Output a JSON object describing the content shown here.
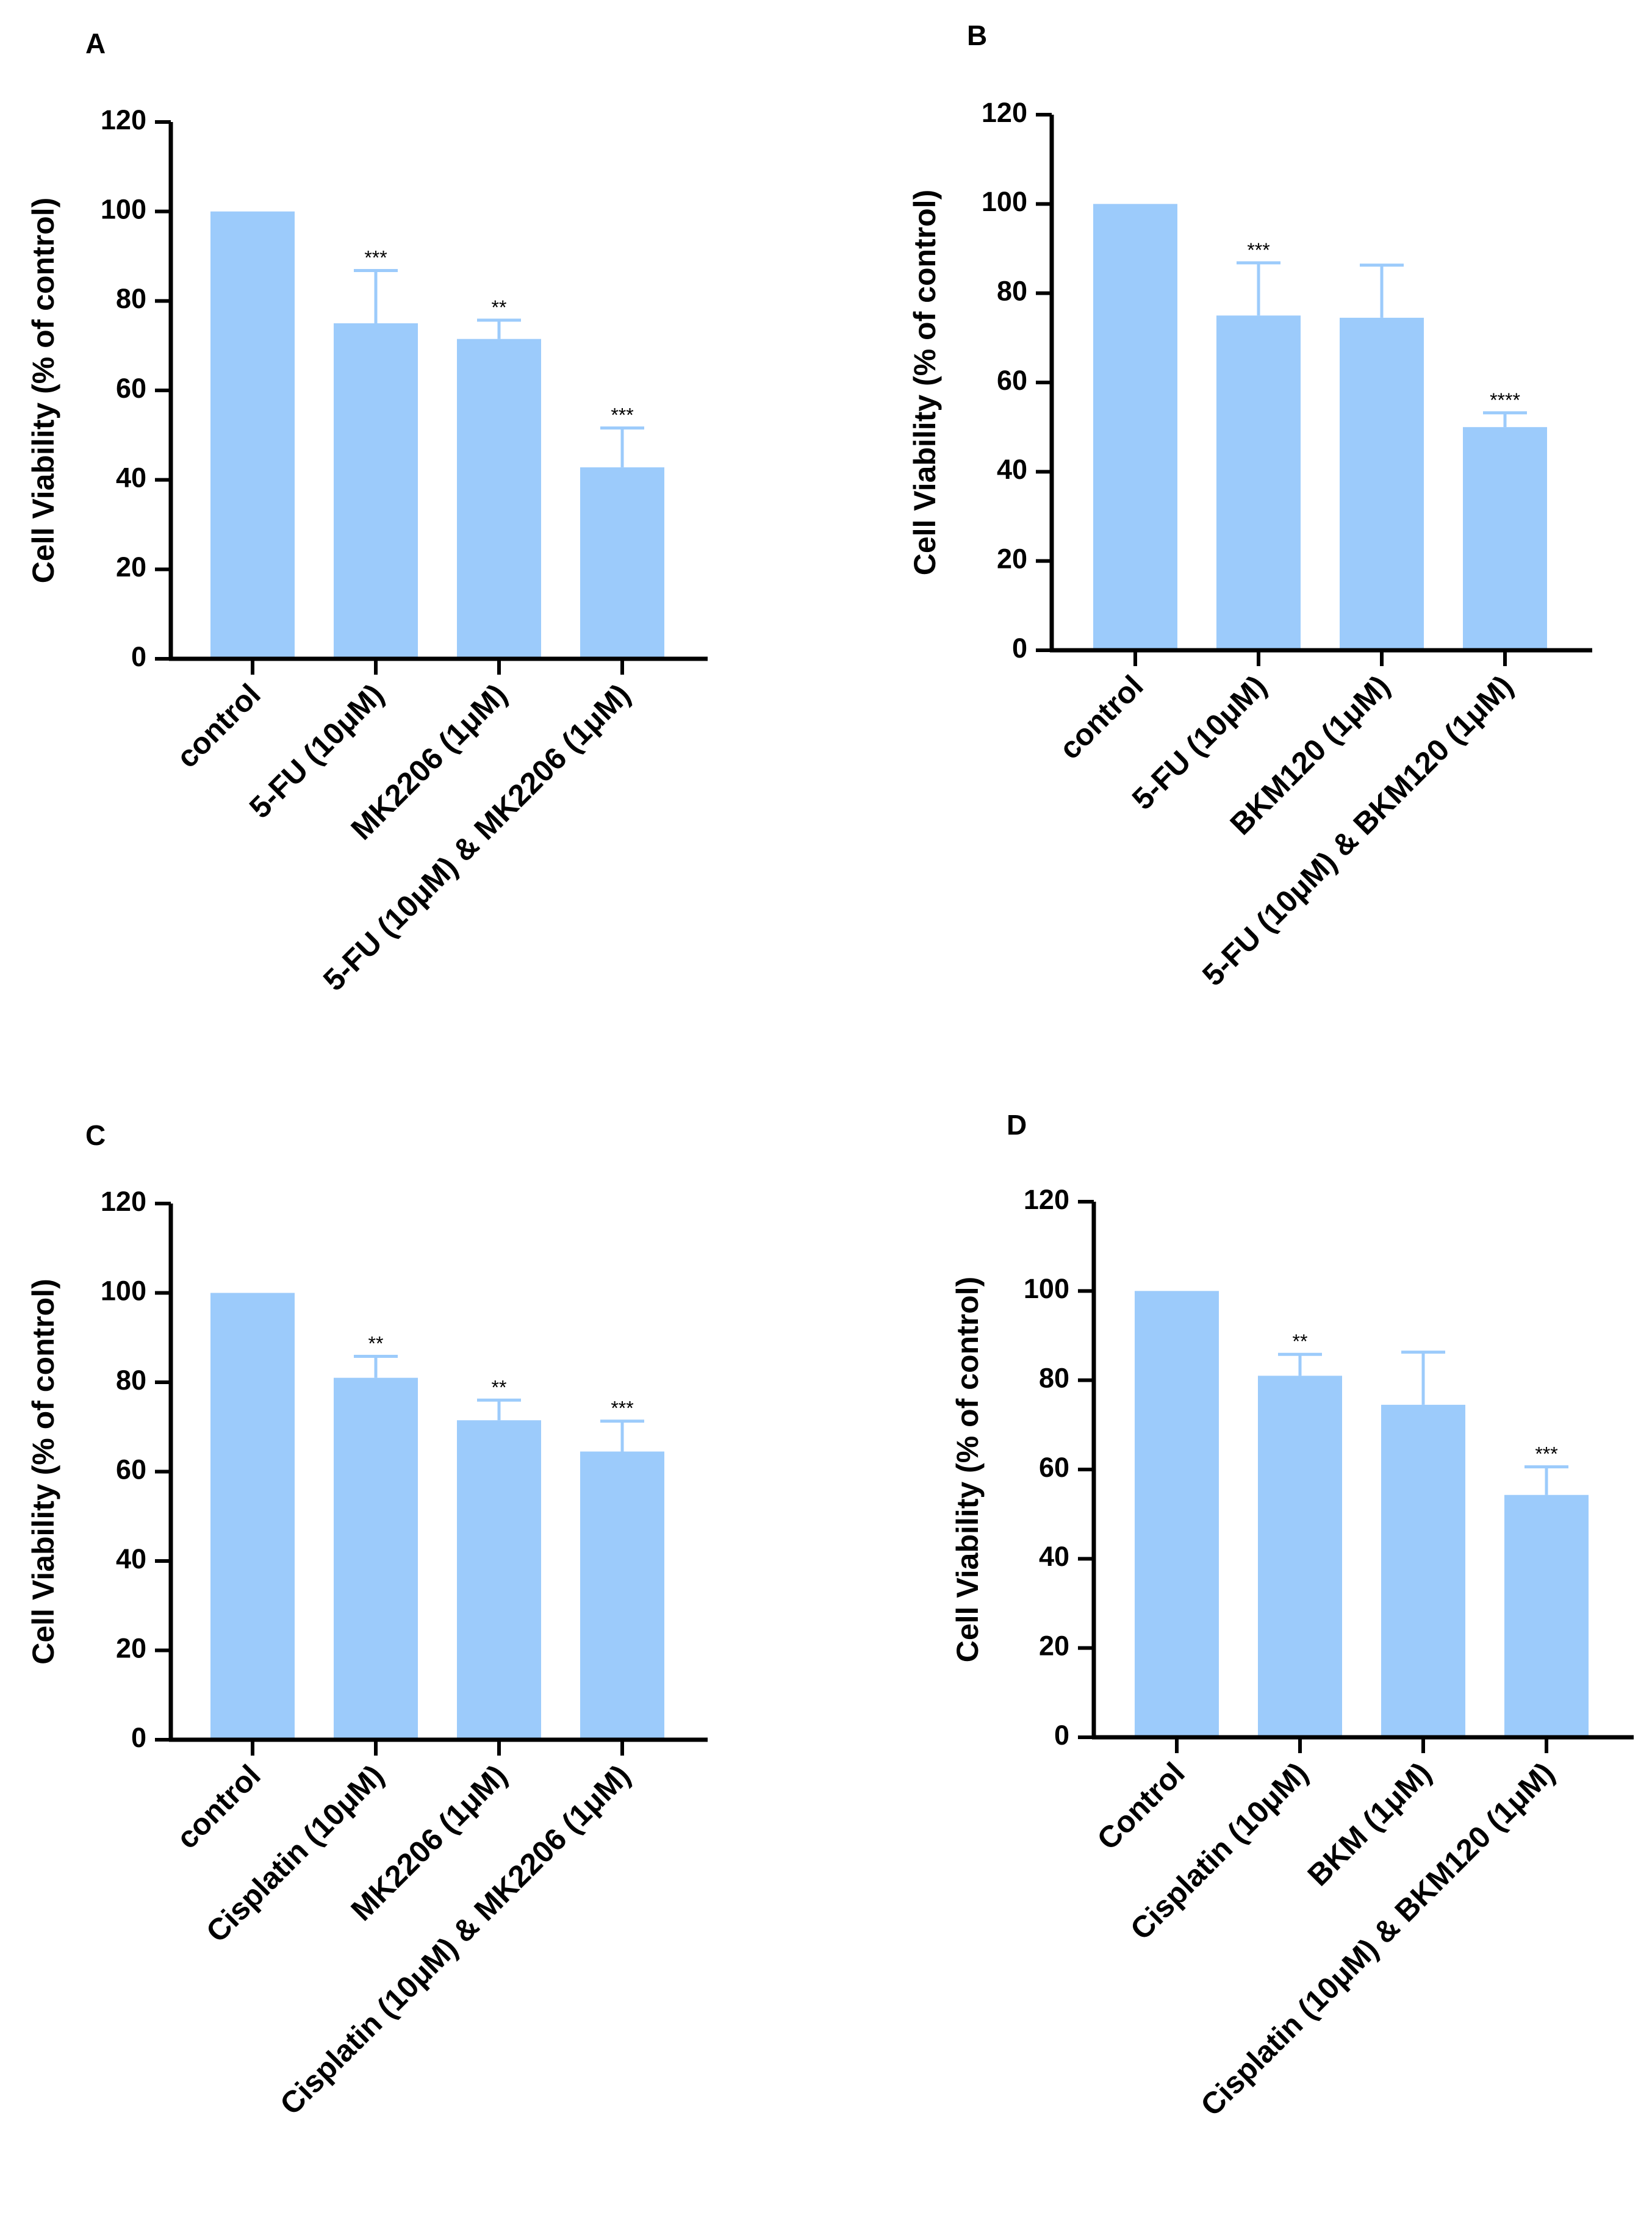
{
  "colors": {
    "bar": "#9ccbfb",
    "axis": "#000000",
    "error": "#9ccbfb"
  },
  "chart_data": [
    {
      "panel": "A",
      "type": "bar",
      "ylabel": "Cell Viability (% of control)",
      "ylim": [
        0,
        120
      ],
      "yticks": [
        "0",
        "20",
        "40",
        "60",
        "80",
        "100",
        "120"
      ],
      "categories": [
        "control",
        "5-FU (10μM)",
        "MK2206 (1μM)",
        "5-FU (10μM) & MK2206 (1μM)"
      ],
      "values": [
        100,
        75,
        71.5,
        42.8
      ],
      "errors": [
        0,
        11.8,
        4.2,
        8.8
      ],
      "significance": [
        "",
        "***",
        "**",
        "***"
      ]
    },
    {
      "panel": "B",
      "type": "bar",
      "ylabel": "Cell Viability (% of control)",
      "ylim": [
        0,
        120
      ],
      "yticks": [
        "0",
        "20",
        "40",
        "60",
        "80",
        "100",
        "120"
      ],
      "categories": [
        "control",
        "5-FU (10μM)",
        "BKM120 (1μM)",
        "5-FU (10μM) & BKM120 (1μM)"
      ],
      "values": [
        100,
        75,
        74.5,
        50
      ],
      "errors": [
        0,
        11.8,
        11.8,
        3.2
      ],
      "significance": [
        "",
        "***",
        "",
        "****"
      ]
    },
    {
      "panel": "C",
      "type": "bar",
      "ylabel": "Cell Viability (% of control)",
      "ylim": [
        0,
        120
      ],
      "yticks": [
        "0",
        "20",
        "40",
        "60",
        "80",
        "100",
        "120"
      ],
      "categories": [
        "control",
        "Cisplatin (10μM)",
        "MK2206 (1μM)",
        "Cisplatin (10μM) & MK2206 (1μM)"
      ],
      "values": [
        100,
        81,
        71.5,
        64.5
      ],
      "errors": [
        0,
        4.8,
        4.5,
        6.8
      ],
      "significance": [
        "",
        "**",
        "**",
        "***"
      ]
    },
    {
      "panel": "D",
      "type": "bar",
      "ylabel": "Cell Viability (% of control)",
      "ylim": [
        0,
        120
      ],
      "yticks": [
        "0",
        "20",
        "40",
        "60",
        "80",
        "100",
        "120"
      ],
      "categories": [
        "Control",
        "Cisplatin (10μM)",
        "BKM (1μM)",
        "Cisplatin (10μM) & BKM120  (1μM)"
      ],
      "values": [
        100,
        81,
        74.5,
        54.3
      ],
      "errors": [
        0,
        4.8,
        11.8,
        6.3
      ],
      "significance": [
        "",
        "**",
        "",
        "***"
      ]
    }
  ]
}
